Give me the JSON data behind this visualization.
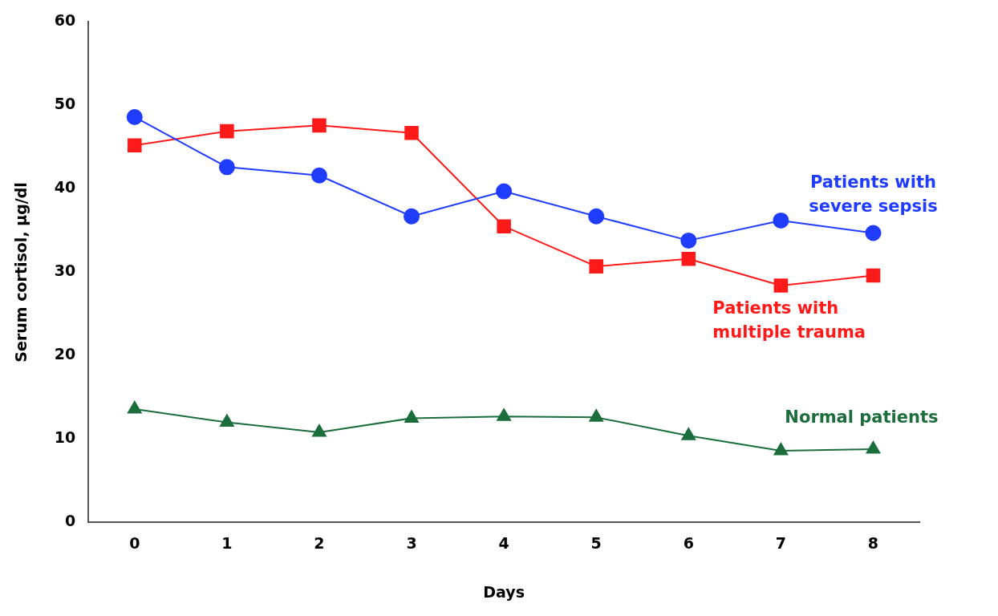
{
  "chart_data": {
    "type": "line",
    "xlabel": "Days",
    "ylabel": "Serum cortisol, µg/dl",
    "categories": [
      "0",
      "1",
      "2",
      "3",
      "4",
      "5",
      "6",
      "7",
      "8"
    ],
    "series": [
      {
        "name": "Patients with severe sepsis",
        "color": "#1f3cff",
        "marker": "circle",
        "values": [
          48.6,
          42.6,
          41.6,
          36.7,
          39.7,
          36.7,
          33.8,
          36.2,
          34.7
        ]
      },
      {
        "name": "Patients with multiple trauma",
        "color": "#ff1a1a",
        "marker": "square",
        "values": [
          45.2,
          46.9,
          47.6,
          46.7,
          35.5,
          30.7,
          31.6,
          28.4,
          29.6
        ]
      },
      {
        "name": "Normal patients",
        "color": "#1b6e3c",
        "marker": "triangle",
        "values": [
          13.6,
          12.0,
          10.8,
          12.5,
          12.7,
          12.6,
          10.4,
          8.6,
          8.8
        ]
      }
    ],
    "ylim": [
      0,
      60
    ],
    "yticks": [
      0,
      10,
      20,
      30,
      40,
      50,
      60
    ],
    "grid": false,
    "legend": false,
    "line_style": "solid"
  }
}
